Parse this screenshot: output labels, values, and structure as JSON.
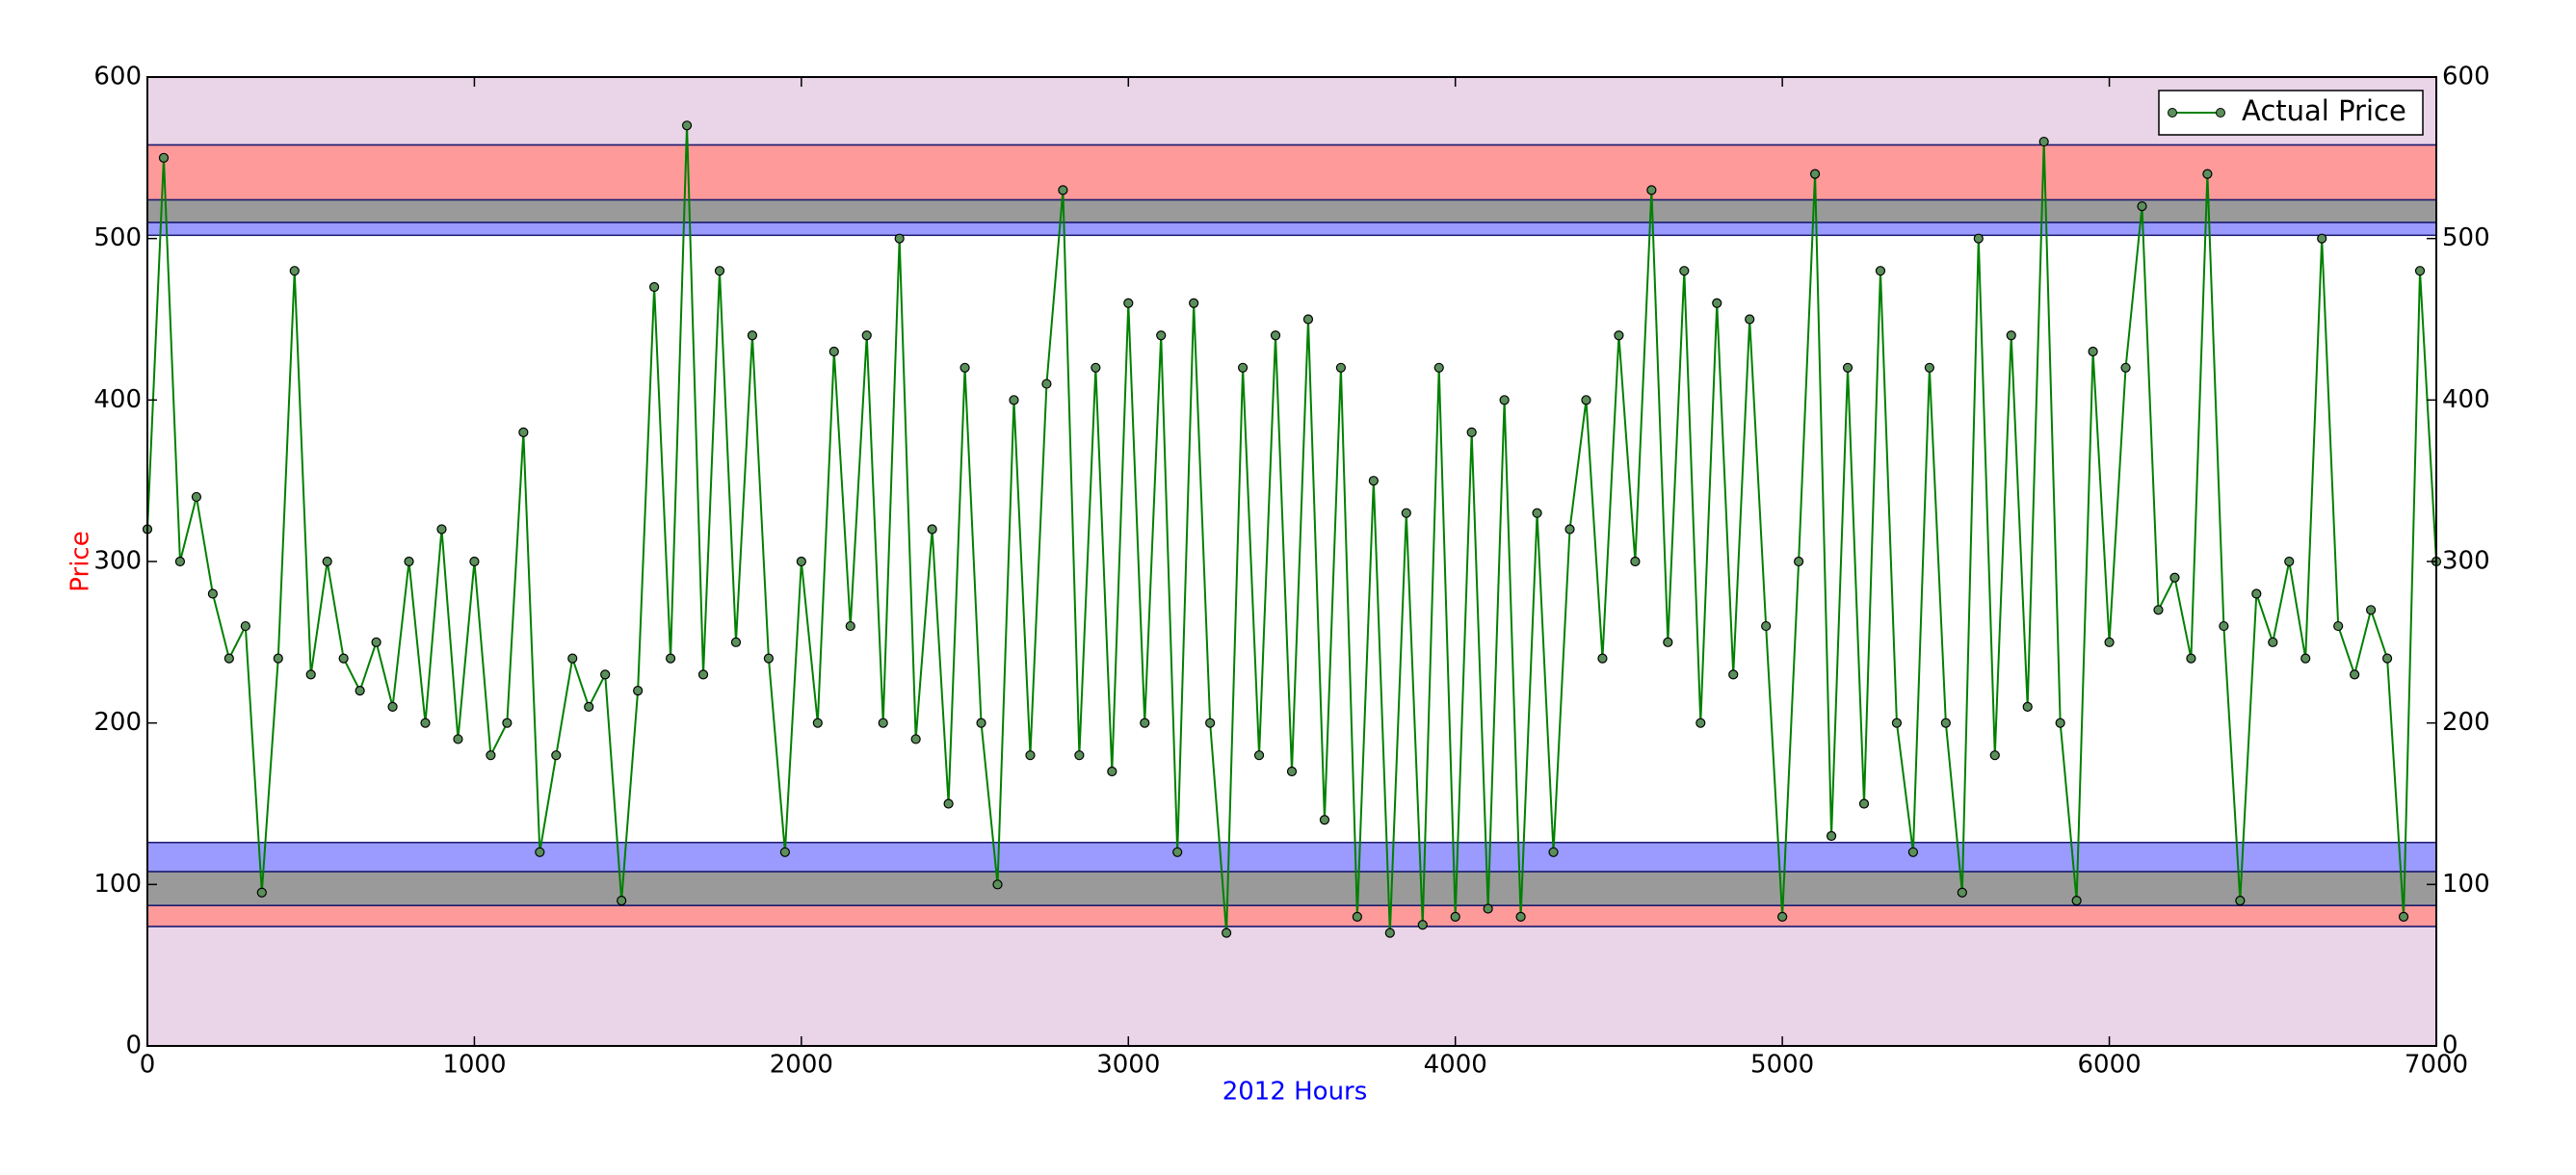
{
  "chart_data": {
    "type": "line",
    "xlabel": "2012 Hours",
    "ylabel": "Price",
    "xlim": [
      0,
      7000
    ],
    "xticks": [
      0,
      1000,
      2000,
      3000,
      4000,
      5000,
      6000,
      7000
    ],
    "ylim": [
      0,
      600
    ],
    "yticks": [
      0,
      100,
      200,
      300,
      400,
      500,
      600
    ],
    "y2lim": [
      0,
      600
    ],
    "y2ticks": [
      0,
      100,
      200,
      300,
      400,
      500,
      600
    ],
    "legend": "upper right",
    "bands": [
      {
        "from": 0,
        "to": 74,
        "color": "#e9d4e8"
      },
      {
        "from": 74,
        "to": 87,
        "color": "#ff9a9a"
      },
      {
        "from": 87,
        "to": 108,
        "color": "#9a9a9a"
      },
      {
        "from": 108,
        "to": 126,
        "color": "#9a9aff"
      },
      {
        "from": 502,
        "to": 510,
        "color": "#9a9aff"
      },
      {
        "from": 510,
        "to": 524,
        "color": "#9a9a9a"
      },
      {
        "from": 524,
        "to": 558,
        "color": "#ff9a9a"
      },
      {
        "from": 558,
        "to": 600,
        "color": "#e9d4e8"
      }
    ],
    "series": [
      {
        "name": "Actual Price",
        "color": "#008000",
        "x": [
          0,
          50,
          100,
          150,
          200,
          250,
          300,
          350,
          400,
          450,
          500,
          550,
          600,
          650,
          700,
          750,
          800,
          850,
          900,
          950,
          1000,
          1050,
          1100,
          1150,
          1200,
          1250,
          1300,
          1350,
          1400,
          1450,
          1500,
          1550,
          1600,
          1650,
          1700,
          1750,
          1800,
          1850,
          1900,
          1950,
          2000,
          2050,
          2100,
          2150,
          2200,
          2250,
          2300,
          2350,
          2400,
          2450,
          2500,
          2550,
          2600,
          2650,
          2700,
          2750,
          2800,
          2850,
          2900,
          2950,
          3000,
          3050,
          3100,
          3150,
          3200,
          3250,
          3300,
          3350,
          3400,
          3450,
          3500,
          3550,
          3600,
          3650,
          3700,
          3750,
          3800,
          3850,
          3900,
          3950,
          4000,
          4050,
          4100,
          4150,
          4200,
          4250,
          4300,
          4350,
          4400,
          4450,
          4500,
          4550,
          4600,
          4650,
          4700,
          4750,
          4800,
          4850,
          4900,
          4950,
          5000,
          5050,
          5100,
          5150,
          5200,
          5250,
          5300,
          5350,
          5400,
          5450,
          5500,
          5550,
          5600,
          5650,
          5700,
          5750,
          5800,
          5850,
          5900,
          5950,
          6000,
          6050,
          6100,
          6150,
          6200,
          6250,
          6300,
          6350,
          6400,
          6450,
          6500,
          6550,
          6600,
          6650,
          6700,
          6750,
          6800,
          6850,
          6900,
          6950,
          7000
        ],
        "values": [
          320,
          550,
          300,
          340,
          280,
          240,
          260,
          95,
          240,
          480,
          230,
          300,
          240,
          220,
          250,
          210,
          300,
          200,
          320,
          190,
          300,
          180,
          200,
          380,
          120,
          180,
          240,
          210,
          230,
          90,
          220,
          470,
          240,
          570,
          230,
          480,
          250,
          440,
          240,
          120,
          300,
          200,
          430,
          260,
          440,
          200,
          500,
          190,
          320,
          150,
          420,
          200,
          100,
          400,
          180,
          410,
          530,
          180,
          420,
          170,
          460,
          200,
          440,
          120,
          460,
          200,
          70,
          420,
          180,
          440,
          170,
          450,
          140,
          420,
          80,
          350,
          70,
          330,
          75,
          420,
          80,
          380,
          85,
          400,
          80,
          330,
          120,
          320,
          400,
          240,
          440,
          300,
          530,
          250,
          480,
          200,
          460,
          230,
          450,
          260,
          80,
          300,
          540,
          130,
          420,
          150,
          480,
          200,
          120,
          420,
          200,
          95,
          500,
          180,
          440,
          210,
          560,
          200,
          90,
          430,
          250,
          420,
          520,
          270,
          290,
          240,
          540,
          260,
          90,
          280,
          250,
          300,
          240,
          500,
          260,
          230,
          270,
          240,
          80,
          480,
          300
        ]
      }
    ]
  }
}
